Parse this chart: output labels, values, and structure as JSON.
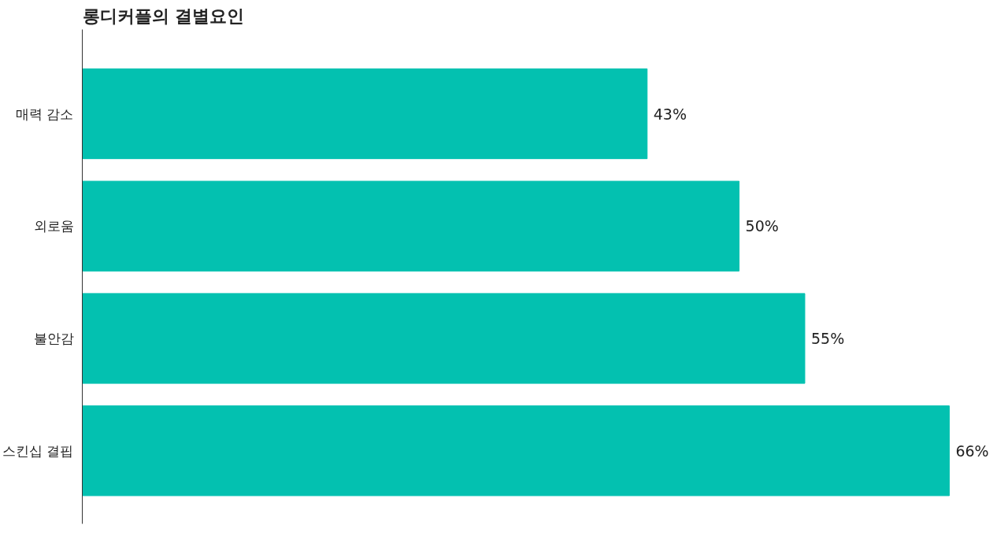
{
  "chart_data": {
    "type": "bar",
    "orientation": "horizontal",
    "title": "롱디커플의 결별요인",
    "categories": [
      "매력 감소",
      "외로움",
      "불안감",
      "스킨십 결핍"
    ],
    "values": [
      43,
      50,
      55,
      66
    ],
    "color": "#03c1b0",
    "value_labels": [
      "43%",
      "50%",
      "55%",
      "66%"
    ]
  }
}
